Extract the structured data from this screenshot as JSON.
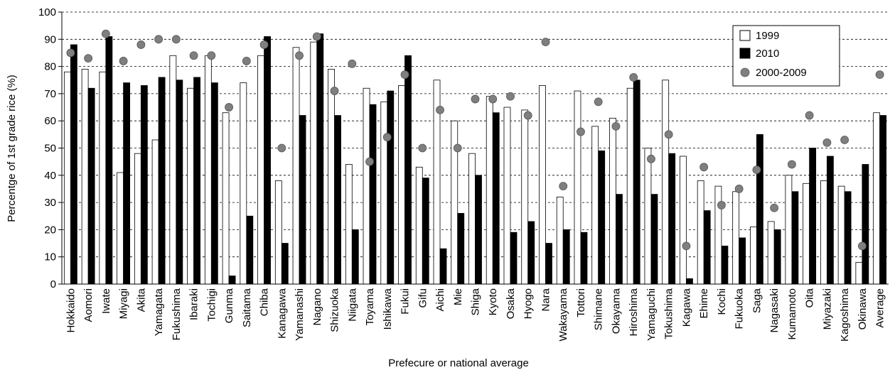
{
  "chart_data": {
    "type": "bar",
    "title": "",
    "xlabel": "Prefecure or national average",
    "ylabel": "Percentge of 1st grade rice (%)",
    "ylim": [
      0,
      100
    ],
    "yticks": [
      0,
      10,
      20,
      30,
      40,
      50,
      60,
      70,
      80,
      90,
      100
    ],
    "grid": "horizontal dashed",
    "legend_position": "top-right",
    "categories": [
      "Hokkaido",
      "Aomori",
      "Iwate",
      "Miyagi",
      "Akita",
      "Yamagata",
      "Fukushima",
      "Ibaraki",
      "Tochigi",
      "Gunma",
      "Saitama",
      "Chiba",
      "Kanagawa",
      "Yamanashi",
      "Nagano",
      "Shizuoka",
      "Niigata",
      "Toyama",
      "Ishikawa",
      "Fukui",
      "Gifu",
      "Aichi",
      "Mie",
      "Shiga",
      "Kyoto",
      "Osaka",
      "Hyogo",
      "Nara",
      "Wakayama",
      "Tottori",
      "Shimane",
      "Okayama",
      "Hiroshima",
      "Yamaguchi",
      "Tokushima",
      "Kagawa",
      "Ehime",
      "Kochi",
      "Fukuoka",
      "Saga",
      "Nagasaki",
      "Kumamoto",
      "Oita",
      "Miyazaki",
      "Kagoshima",
      "Okinawa",
      "Average"
    ],
    "series": [
      {
        "name": "1999",
        "kind": "bar",
        "color": "#ffffff",
        "values": [
          78,
          79,
          78,
          41,
          48,
          53,
          84,
          72,
          84,
          63,
          74,
          84,
          38,
          87,
          89,
          79,
          44,
          72,
          67,
          73,
          43,
          75,
          60,
          48,
          69,
          65,
          64,
          73,
          32,
          71,
          58,
          61,
          72,
          50,
          75,
          47,
          38,
          36,
          34,
          21,
          23,
          40,
          37,
          38,
          36,
          8,
          63
        ]
      },
      {
        "name": "2010",
        "kind": "bar",
        "color": "#000000",
        "values": [
          88,
          72,
          91,
          74,
          73,
          76,
          75,
          76,
          74,
          3,
          25,
          91,
          15,
          62,
          92,
          62,
          20,
          66,
          71,
          84,
          39,
          13,
          26,
          40,
          63,
          19,
          23,
          15,
          20,
          19,
          49,
          33,
          75,
          33,
          48,
          2,
          27,
          14,
          17,
          55,
          20,
          34,
          50,
          47,
          34,
          44,
          62
        ]
      },
      {
        "name": "2000-2009",
        "kind": "dot",
        "color": "#7f7f7f",
        "values": [
          85,
          83,
          92,
          82,
          88,
          90,
          90,
          84,
          84,
          65,
          82,
          88,
          50,
          84,
          91,
          71,
          81,
          45,
          54,
          77,
          50,
          64,
          50,
          68,
          68,
          69,
          62,
          89,
          36,
          56,
          67,
          58,
          76,
          46,
          55,
          14,
          43,
          29,
          35,
          42,
          28,
          44,
          62,
          52,
          53,
          14,
          77
        ]
      }
    ]
  }
}
